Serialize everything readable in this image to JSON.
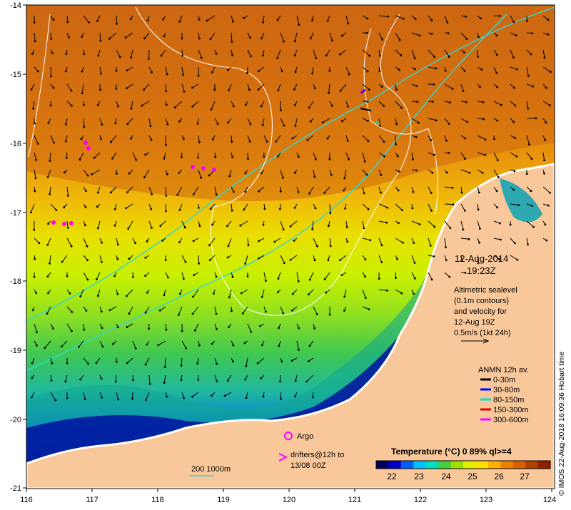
{
  "map": {
    "date": "12-Aug-2014",
    "time": "19:23Z",
    "lon_ticks": [
      "116",
      "117",
      "118",
      "119",
      "120",
      "121",
      "122",
      "123",
      "124"
    ],
    "lat_ticks": [
      "-14",
      "-15",
      "-16",
      "-17",
      "-18",
      "-19",
      "-20",
      "-21"
    ],
    "altimetry": {
      "line1": "Altimetric sealevel",
      "line2": "(0.1m contours)",
      "line3": "and velocity for",
      "line4": "12-Aug 19Z",
      "line5": "0.5m/s (1kt 24h)"
    },
    "anmn": {
      "title": "ANMN 12h av.",
      "items": [
        {
          "label": "0-30m",
          "color": "#000000"
        },
        {
          "label": "30-80m",
          "color": "#0000ff"
        },
        {
          "label": "80-150m",
          "color": "#00e0e0"
        },
        {
          "label": "150-300m",
          "color": "#e00000"
        },
        {
          "label": "300-600m",
          "color": "#ff00ff"
        }
      ]
    },
    "argo_label": "Argo",
    "drifters_line1": "drifters@12h to",
    "drifters_line2": "13/08 00Z",
    "depth_label": "200  1000m",
    "colorbar": {
      "title": "Temperature (°C) 0 89% ql>=4",
      "ticks": [
        "22",
        "23",
        "24",
        "25",
        "26",
        "27"
      ],
      "colors": [
        "#000060",
        "#0000c8",
        "#0060ff",
        "#00c0ff",
        "#00e0c0",
        "#40d040",
        "#a0e000",
        "#e0f000",
        "#ffe000",
        "#ffb000",
        "#f08000",
        "#d86000",
        "#b04000",
        "#902000"
      ]
    },
    "credit": "© IMOS 22-Aug-2018 16:09:36 Hobart time"
  }
}
